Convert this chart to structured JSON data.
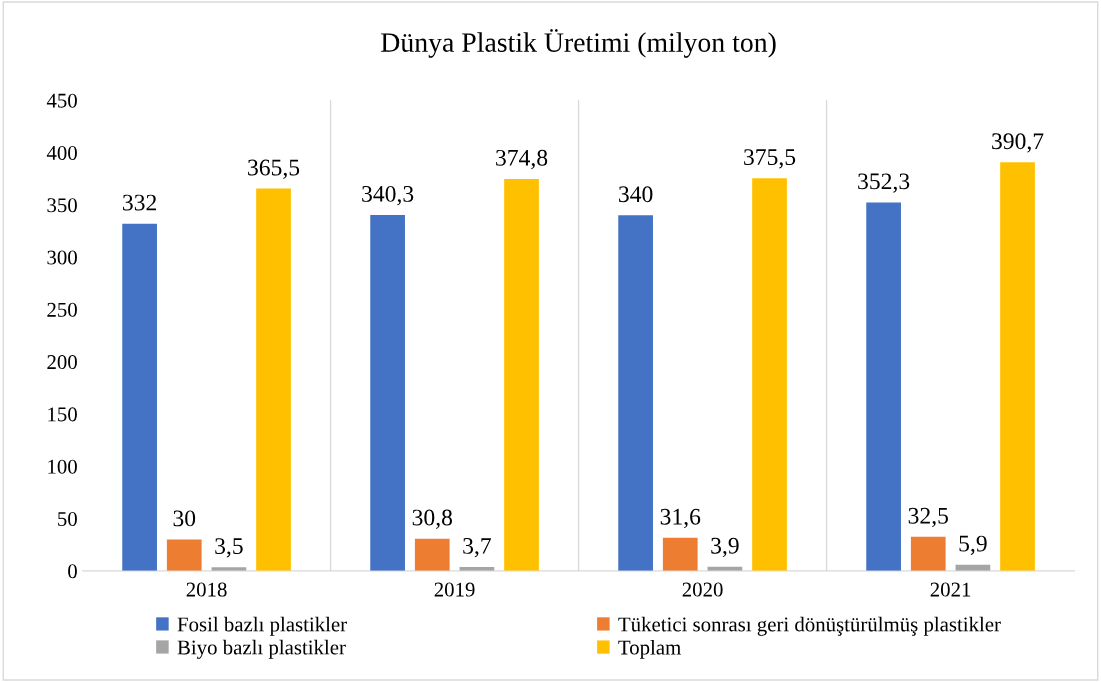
{
  "chart_data": {
    "type": "bar",
    "title": "Dünya Plastik Üretimi (milyon ton)",
    "categories": [
      "2018",
      "2019",
      "2020",
      "2021"
    ],
    "series": [
      {
        "name": "Fosil bazlı plastikler",
        "color": "#4472c4",
        "values": [
          332,
          340.3,
          340,
          352.3
        ],
        "value_labels": [
          "332",
          "340,3",
          "340",
          "352,3"
        ]
      },
      {
        "name": "Tüketici sonrası geri dönüştürülmüş plastikler",
        "color": "#ed7d31",
        "values": [
          30,
          30.8,
          31.6,
          32.5
        ],
        "value_labels": [
          "30",
          "30,8",
          "31,6",
          "32,5"
        ]
      },
      {
        "name": "Biyo bazlı plastikler",
        "color": "#a5a5a5",
        "values": [
          3.5,
          3.7,
          3.9,
          5.9
        ],
        "value_labels": [
          "3,5",
          "3,7",
          "3,9",
          "5,9"
        ]
      },
      {
        "name": "Toplam",
        "color": "#ffc000",
        "values": [
          365.5,
          374.8,
          375.5,
          390.7
        ],
        "value_labels": [
          "365,5",
          "374,8",
          "375,5",
          "390,7"
        ]
      }
    ],
    "ylim": [
      0,
      450
    ],
    "yticks": [
      0,
      50,
      100,
      150,
      200,
      250,
      300,
      350,
      400,
      450
    ],
    "grid": "x",
    "legend": "bottom"
  }
}
